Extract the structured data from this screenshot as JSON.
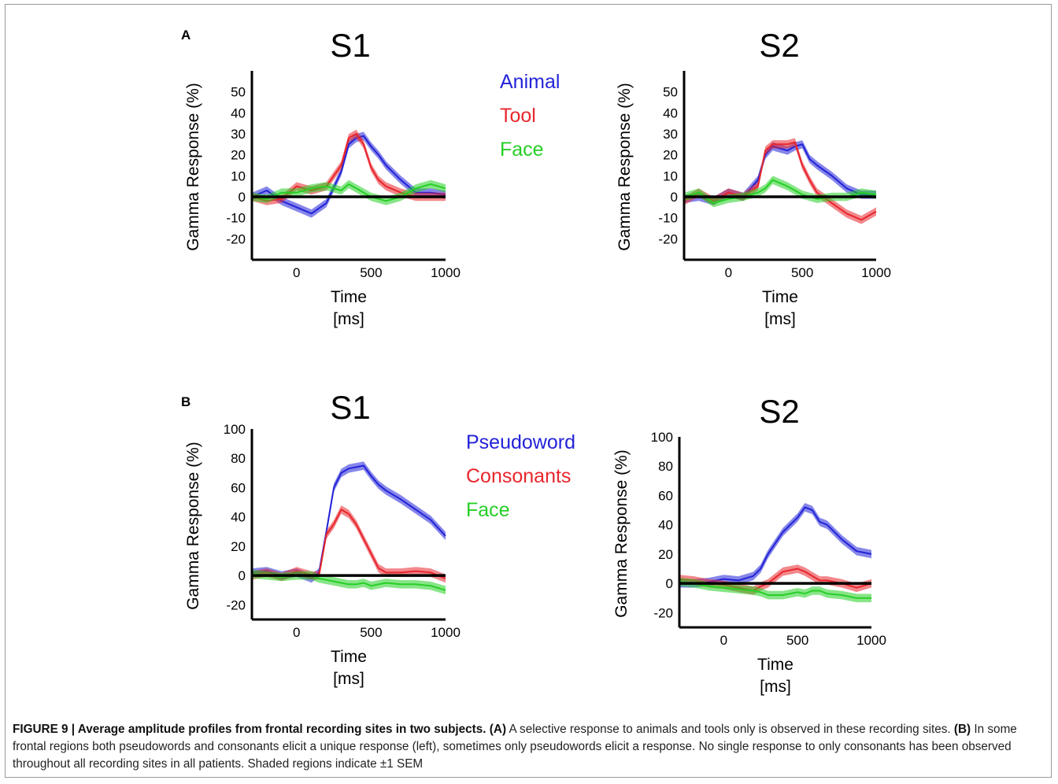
{
  "figure": {
    "caption": {
      "label": "FIGURE 9 | Average amplitude profiles from frontal recording sites in two subjects.",
      "a_marker": "(A)",
      "a_text": "A selective response to animals and tools only is observed in these recording sites.",
      "b_marker": "(B)",
      "b_text": "In some frontal regions both pseudowords and consonants elicit a unique response (left), sometimes only pseudowords elicit a response. No single response to only consonants has been observed throughout all recording sites in all patients. Shaded regions indicate ±1 SEM"
    },
    "colors": {
      "blue": "#2323d8",
      "red": "#e8262d",
      "green": "#26cf26"
    }
  },
  "chart_data": [
    {
      "type": "line",
      "panel": "A",
      "title": "S1",
      "xlabel": "Time\n[ms]",
      "ylabel": "Gamma Response (%)",
      "xlim": [
        -300,
        1000
      ],
      "ylim": [
        -30,
        60
      ],
      "xticks": [
        0,
        500,
        1000
      ],
      "yticks": [
        -20,
        -10,
        0,
        10,
        20,
        30,
        40,
        50
      ],
      "legend": [
        "Animal",
        "Tool",
        "Face"
      ],
      "shaded_error": "±1 SEM",
      "x": [
        -300,
        -200,
        -100,
        0,
        100,
        200,
        300,
        350,
        400,
        450,
        500,
        550,
        600,
        700,
        800,
        900,
        1000
      ],
      "series": [
        {
          "name": "Animal",
          "color": "#2323d8",
          "values": [
            0,
            3,
            -2,
            -5,
            -8,
            -3,
            12,
            25,
            28,
            29,
            24,
            20,
            15,
            8,
            2,
            2,
            1
          ]
        },
        {
          "name": "Tool",
          "color": "#e8262d",
          "values": [
            0,
            -2,
            -1,
            5,
            3,
            5,
            15,
            28,
            30,
            25,
            14,
            8,
            5,
            2,
            0,
            0,
            0
          ]
        },
        {
          "name": "Face",
          "color": "#26cf26",
          "values": [
            0,
            -1,
            2,
            2,
            4,
            5,
            3,
            6,
            4,
            2,
            0,
            -1,
            -2,
            0,
            4,
            6,
            4
          ]
        }
      ]
    },
    {
      "type": "line",
      "panel": "A",
      "title": "S2",
      "xlabel": "Time\n[ms]",
      "ylabel": "Gamma Response (%)",
      "xlim": [
        -300,
        1000
      ],
      "ylim": [
        -30,
        60
      ],
      "xticks": [
        0,
        500,
        1000
      ],
      "yticks": [
        -20,
        -10,
        0,
        10,
        20,
        30,
        40,
        50
      ],
      "legend": [],
      "shaded_error": "±1 SEM",
      "x": [
        -300,
        -200,
        -100,
        0,
        100,
        200,
        250,
        300,
        400,
        450,
        500,
        550,
        600,
        700,
        800,
        900,
        1000
      ],
      "series": [
        {
          "name": "Animal",
          "color": "#2323d8",
          "values": [
            -1,
            0,
            -2,
            2,
            0,
            8,
            20,
            24,
            22,
            24,
            25,
            18,
            15,
            10,
            4,
            1,
            1
          ]
        },
        {
          "name": "Tool",
          "color": "#e8262d",
          "values": [
            -2,
            2,
            -2,
            2,
            0,
            5,
            22,
            25,
            25,
            26,
            15,
            8,
            2,
            -3,
            -8,
            -11,
            -7
          ]
        },
        {
          "name": "Face",
          "color": "#26cf26",
          "values": [
            0,
            2,
            -3,
            -1,
            0,
            2,
            4,
            8,
            5,
            3,
            1,
            0,
            -1,
            0,
            0,
            2,
            1
          ]
        }
      ]
    },
    {
      "type": "line",
      "panel": "B",
      "title": "S1",
      "xlabel": "Time\n[ms]",
      "ylabel": "Gamma Response (%)",
      "xlim": [
        -300,
        1000
      ],
      "ylim": [
        -30,
        100
      ],
      "xticks": [
        0,
        500,
        1000
      ],
      "yticks": [
        -20,
        0,
        20,
        40,
        60,
        80,
        100
      ],
      "legend": [
        "Pseudoword",
        "Consonants",
        "Face"
      ],
      "shaded_error": "±1 SEM",
      "x": [
        -300,
        -200,
        -100,
        0,
        100,
        150,
        200,
        250,
        300,
        350,
        400,
        450,
        500,
        550,
        600,
        700,
        800,
        900,
        1000
      ],
      "series": [
        {
          "name": "Pseudoword",
          "color": "#2323d8",
          "values": [
            2,
            3,
            0,
            2,
            -2,
            2,
            30,
            60,
            70,
            73,
            74,
            75,
            68,
            62,
            58,
            52,
            45,
            38,
            27
          ]
        },
        {
          "name": "Consonants",
          "color": "#e8262d",
          "values": [
            0,
            2,
            -1,
            3,
            0,
            0,
            28,
            35,
            45,
            42,
            35,
            25,
            15,
            5,
            2,
            2,
            3,
            2,
            -2
          ]
        },
        {
          "name": "Face",
          "color": "#26cf26",
          "values": [
            1,
            0,
            -1,
            0,
            0,
            -2,
            -3,
            -4,
            -5,
            -6,
            -6,
            -5,
            -7,
            -6,
            -5,
            -6,
            -6,
            -7,
            -10
          ]
        }
      ]
    },
    {
      "type": "line",
      "panel": "B",
      "title": "S2",
      "xlabel": "Time\n[ms]",
      "ylabel": "Gamma Response (%)",
      "xlim": [
        -300,
        1000
      ],
      "ylim": [
        -30,
        100
      ],
      "xticks": [
        0,
        500,
        1000
      ],
      "yticks": [
        -20,
        0,
        20,
        40,
        60,
        80,
        100
      ],
      "legend": [],
      "shaded_error": "±1 SEM",
      "x": [
        -300,
        -200,
        -100,
        0,
        100,
        200,
        250,
        300,
        400,
        500,
        550,
        600,
        650,
        700,
        800,
        900,
        1000
      ],
      "series": [
        {
          "name": "Pseudoword",
          "color": "#2323d8",
          "values": [
            0,
            0,
            1,
            3,
            2,
            5,
            10,
            20,
            35,
            45,
            52,
            50,
            42,
            40,
            30,
            22,
            20
          ]
        },
        {
          "name": "Consonants",
          "color": "#e8262d",
          "values": [
            3,
            2,
            0,
            -1,
            -3,
            -5,
            -2,
            0,
            8,
            10,
            8,
            5,
            2,
            2,
            0,
            -3,
            0
          ]
        },
        {
          "name": "Face",
          "color": "#26cf26",
          "values": [
            1,
            0,
            -2,
            -3,
            -4,
            -5,
            -6,
            -8,
            -8,
            -6,
            -7,
            -5,
            -5,
            -7,
            -8,
            -10,
            -10
          ]
        }
      ]
    }
  ]
}
